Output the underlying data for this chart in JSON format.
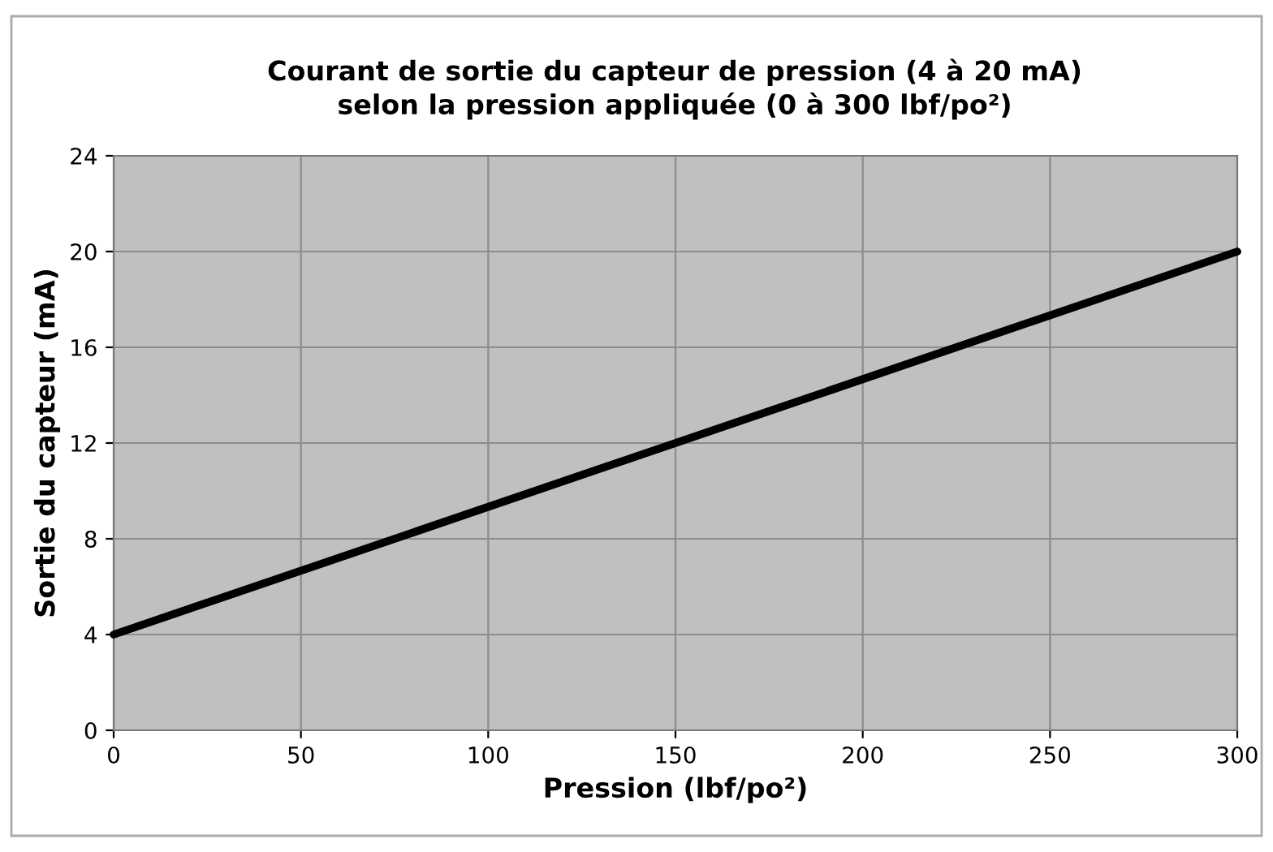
{
  "chart_data": {
    "type": "line",
    "title": "Courant de sortie du capteur de pression (4 à 20 mA)\nselon la pression appliquée (0 à 300 lbf/po²)",
    "xlabel": "Pression (lbf/po²)",
    "ylabel": "Sortie du capteur (mA)",
    "x": [
      0,
      300
    ],
    "series": [
      {
        "color": "#000000",
        "values": [
          4,
          20
        ]
      }
    ],
    "xlim": [
      0,
      300
    ],
    "xticks": [
      0,
      50,
      100,
      150,
      200,
      250,
      300
    ],
    "ylim": [
      0,
      24
    ],
    "yticks": [
      0,
      4,
      8,
      12,
      16,
      20,
      24
    ],
    "grid": true,
    "marker": "none",
    "line_style": "solid",
    "legend": false
  }
}
